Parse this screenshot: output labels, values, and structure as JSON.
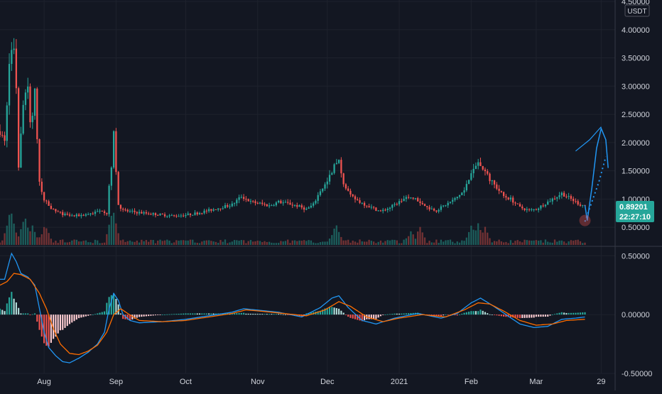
{
  "colors": {
    "background": "#131722",
    "grid": "#1e222d",
    "axis_text": "#d1d4dc",
    "separator": "#363a45",
    "up": "#26a69a",
    "down": "#ef5350",
    "volume_up": "#1f6f6a",
    "volume_down": "#8b3a3a",
    "macd_line": "#2196f3",
    "signal_line": "#ff6d00",
    "hist_pos_strong": "#26a69a",
    "hist_pos_weak": "#b2dfdb",
    "hist_neg_strong": "#ef5350",
    "hist_neg_weak": "#ffcdd2",
    "projection": "#2196f3",
    "price_badge_bg": "#26a69a",
    "price_badge_text": "#ffffff"
  },
  "chart_data": [
    {
      "type": "candlestick",
      "pane": "price",
      "currency_label": "USDT",
      "y_ticks": [
        "4.50000",
        "4.00000",
        "3.50000",
        "3.00000",
        "2.50000",
        "2.00000",
        "1.50000",
        "1.00000",
        "0.50000"
      ],
      "y_tick_values": [
        4.5,
        4.0,
        3.5,
        3.0,
        2.5,
        2.0,
        1.5,
        1.0,
        0.5
      ],
      "ylim": [
        0.2,
        4.5
      ],
      "x_ticks": [
        "Aug",
        "Sep",
        "Oct",
        "Nov",
        "Dec",
        "2021",
        "Feb",
        "Mar",
        "29"
      ],
      "x_tick_days": [
        19,
        50,
        80,
        111,
        141,
        172,
        203,
        231,
        259
      ],
      "x_range_days": [
        0,
        265
      ],
      "keyframes": [
        [
          0,
          2.2
        ],
        [
          2,
          2.0
        ],
        [
          4,
          3.4
        ],
        [
          5,
          3.6
        ],
        [
          6,
          3.7
        ],
        [
          7,
          3.0
        ],
        [
          8,
          1.6
        ],
        [
          9,
          2.2
        ],
        [
          10,
          2.6
        ],
        [
          11,
          2.9
        ],
        [
          12,
          3.0
        ],
        [
          13,
          2.3
        ],
        [
          14,
          2.5
        ],
        [
          15,
          2.9
        ],
        [
          16,
          2.0
        ],
        [
          17,
          1.3
        ],
        [
          18,
          1.1
        ],
        [
          19,
          1.0
        ],
        [
          20,
          0.95
        ],
        [
          22,
          0.85
        ],
        [
          24,
          0.78
        ],
        [
          28,
          0.72
        ],
        [
          32,
          0.7
        ],
        [
          36,
          0.72
        ],
        [
          40,
          0.75
        ],
        [
          44,
          0.8
        ],
        [
          46,
          0.75
        ],
        [
          47,
          1.2
        ],
        [
          48,
          1.6
        ],
        [
          49,
          2.2
        ],
        [
          50,
          1.5
        ],
        [
          51,
          0.9
        ],
        [
          53,
          0.8
        ],
        [
          56,
          0.78
        ],
        [
          60,
          0.76
        ],
        [
          65,
          0.74
        ],
        [
          70,
          0.72
        ],
        [
          75,
          0.7
        ],
        [
          80,
          0.72
        ],
        [
          85,
          0.75
        ],
        [
          90,
          0.8
        ],
        [
          95,
          0.85
        ],
        [
          100,
          0.9
        ],
        [
          104,
          1.05
        ],
        [
          108,
          0.95
        ],
        [
          112,
          0.92
        ],
        [
          116,
          0.88
        ],
        [
          120,
          0.95
        ],
        [
          124,
          0.92
        ],
        [
          128,
          0.88
        ],
        [
          132,
          0.82
        ],
        [
          135,
          0.9
        ],
        [
          138,
          1.15
        ],
        [
          141,
          1.3
        ],
        [
          144,
          1.6
        ],
        [
          146,
          1.65
        ],
        [
          148,
          1.3
        ],
        [
          151,
          1.05
        ],
        [
          155,
          0.95
        ],
        [
          160,
          0.85
        ],
        [
          164,
          0.78
        ],
        [
          168,
          0.85
        ],
        [
          172,
          0.95
        ],
        [
          176,
          1.05
        ],
        [
          180,
          0.98
        ],
        [
          184,
          0.85
        ],
        [
          188,
          0.8
        ],
        [
          192,
          0.9
        ],
        [
          196,
          1.0
        ],
        [
          200,
          1.15
        ],
        [
          203,
          1.45
        ],
        [
          206,
          1.65
        ],
        [
          208,
          1.55
        ],
        [
          211,
          1.35
        ],
        [
          214,
          1.2
        ],
        [
          217,
          1.05
        ],
        [
          220,
          1.0
        ],
        [
          224,
          0.85
        ],
        [
          228,
          0.8
        ],
        [
          231,
          0.82
        ],
        [
          234,
          0.9
        ],
        [
          238,
          1.0
        ],
        [
          242,
          1.1
        ],
        [
          246,
          1.0
        ],
        [
          250,
          0.9
        ],
        [
          252,
          0.89
        ]
      ],
      "last_price": "0.89201",
      "countdown": "22:27:10",
      "projection_path": [
        [
          252,
          0.89
        ],
        [
          253,
          0.62
        ],
        [
          255,
          1.2
        ],
        [
          257,
          1.9
        ],
        [
          259,
          2.25
        ],
        [
          261,
          2.05
        ],
        [
          262,
          1.55
        ]
      ],
      "projection_band_path": [
        [
          248,
          1.85
        ],
        [
          254,
          2.05
        ],
        [
          259,
          2.28
        ]
      ],
      "projection_dots": [
        [
          252,
          0.6
        ],
        [
          255,
          0.95
        ],
        [
          258,
          1.3
        ],
        [
          261,
          1.75
        ]
      ],
      "marker_circle": [
        [
          252,
          0.62
        ]
      ],
      "volume": {
        "ylim": [
          0,
          1
        ],
        "spikes": [
          [
            4,
            0.9
          ],
          [
            5,
            0.95
          ],
          [
            10,
            0.7
          ],
          [
            11,
            0.75
          ],
          [
            14,
            0.6
          ],
          [
            19,
            0.5
          ],
          [
            20,
            0.45
          ],
          [
            48,
            0.9
          ],
          [
            49,
            1.0
          ],
          [
            144,
            0.45
          ],
          [
            145,
            0.55
          ],
          [
            177,
            0.4
          ],
          [
            181,
            0.55
          ],
          [
            203,
            0.6
          ],
          [
            206,
            0.62
          ],
          [
            209,
            0.5
          ]
        ]
      }
    },
    {
      "type": "macd",
      "pane": "indicator",
      "y_ticks": [
        "0.50000",
        "0.00000",
        "-0.50000"
      ],
      "y_tick_values": [
        0.5,
        0.0,
        -0.5
      ],
      "ylim": [
        -0.5,
        0.55
      ],
      "macd_keyframes": [
        [
          0,
          0.3
        ],
        [
          2,
          0.3
        ],
        [
          4,
          0.45
        ],
        [
          5,
          0.52
        ],
        [
          7,
          0.45
        ],
        [
          9,
          0.35
        ],
        [
          12,
          0.32
        ],
        [
          15,
          0.25
        ],
        [
          17,
          0.05
        ],
        [
          19,
          -0.15
        ],
        [
          21,
          -0.28
        ],
        [
          24,
          -0.35
        ],
        [
          27,
          -0.4
        ],
        [
          30,
          -0.41
        ],
        [
          34,
          -0.37
        ],
        [
          38,
          -0.32
        ],
        [
          42,
          -0.25
        ],
        [
          45,
          -0.15
        ],
        [
          47,
          0.05
        ],
        [
          49,
          0.18
        ],
        [
          51,
          0.12
        ],
        [
          53,
          0.0
        ],
        [
          56,
          -0.05
        ],
        [
          60,
          -0.07
        ],
        [
          70,
          -0.06
        ],
        [
          80,
          -0.04
        ],
        [
          90,
          -0.01
        ],
        [
          100,
          0.02
        ],
        [
          105,
          0.05
        ],
        [
          110,
          0.04
        ],
        [
          120,
          0.02
        ],
        [
          130,
          -0.02
        ],
        [
          138,
          0.06
        ],
        [
          143,
          0.14
        ],
        [
          146,
          0.16
        ],
        [
          150,
          0.06
        ],
        [
          156,
          -0.05
        ],
        [
          162,
          -0.08
        ],
        [
          170,
          -0.03
        ],
        [
          180,
          0.01
        ],
        [
          190,
          -0.03
        ],
        [
          197,
          0.01
        ],
        [
          203,
          0.1
        ],
        [
          207,
          0.14
        ],
        [
          212,
          0.08
        ],
        [
          218,
          0.0
        ],
        [
          224,
          -0.08
        ],
        [
          230,
          -0.11
        ],
        [
          236,
          -0.1
        ],
        [
          242,
          -0.04
        ],
        [
          248,
          -0.03
        ],
        [
          252,
          -0.02
        ]
      ],
      "signal_keyframes": [
        [
          0,
          0.25
        ],
        [
          3,
          0.28
        ],
        [
          6,
          0.35
        ],
        [
          9,
          0.34
        ],
        [
          13,
          0.3
        ],
        [
          17,
          0.18
        ],
        [
          20,
          0.05
        ],
        [
          23,
          -0.12
        ],
        [
          26,
          -0.25
        ],
        [
          30,
          -0.33
        ],
        [
          34,
          -0.34
        ],
        [
          38,
          -0.31
        ],
        [
          42,
          -0.26
        ],
        [
          46,
          -0.15
        ],
        [
          49,
          0.0
        ],
        [
          52,
          0.05
        ],
        [
          55,
          0.01
        ],
        [
          60,
          -0.05
        ],
        [
          70,
          -0.06
        ],
        [
          80,
          -0.05
        ],
        [
          90,
          -0.02
        ],
        [
          100,
          0.01
        ],
        [
          106,
          0.04
        ],
        [
          112,
          0.03
        ],
        [
          122,
          0.01
        ],
        [
          132,
          -0.01
        ],
        [
          140,
          0.04
        ],
        [
          146,
          0.11
        ],
        [
          151,
          0.07
        ],
        [
          158,
          -0.02
        ],
        [
          165,
          -0.06
        ],
        [
          172,
          -0.03
        ],
        [
          182,
          0.0
        ],
        [
          192,
          -0.02
        ],
        [
          200,
          0.04
        ],
        [
          206,
          0.1
        ],
        [
          211,
          0.09
        ],
        [
          217,
          0.03
        ],
        [
          224,
          -0.05
        ],
        [
          231,
          -0.09
        ],
        [
          238,
          -0.08
        ],
        [
          244,
          -0.05
        ],
        [
          252,
          -0.04
        ]
      ]
    }
  ]
}
